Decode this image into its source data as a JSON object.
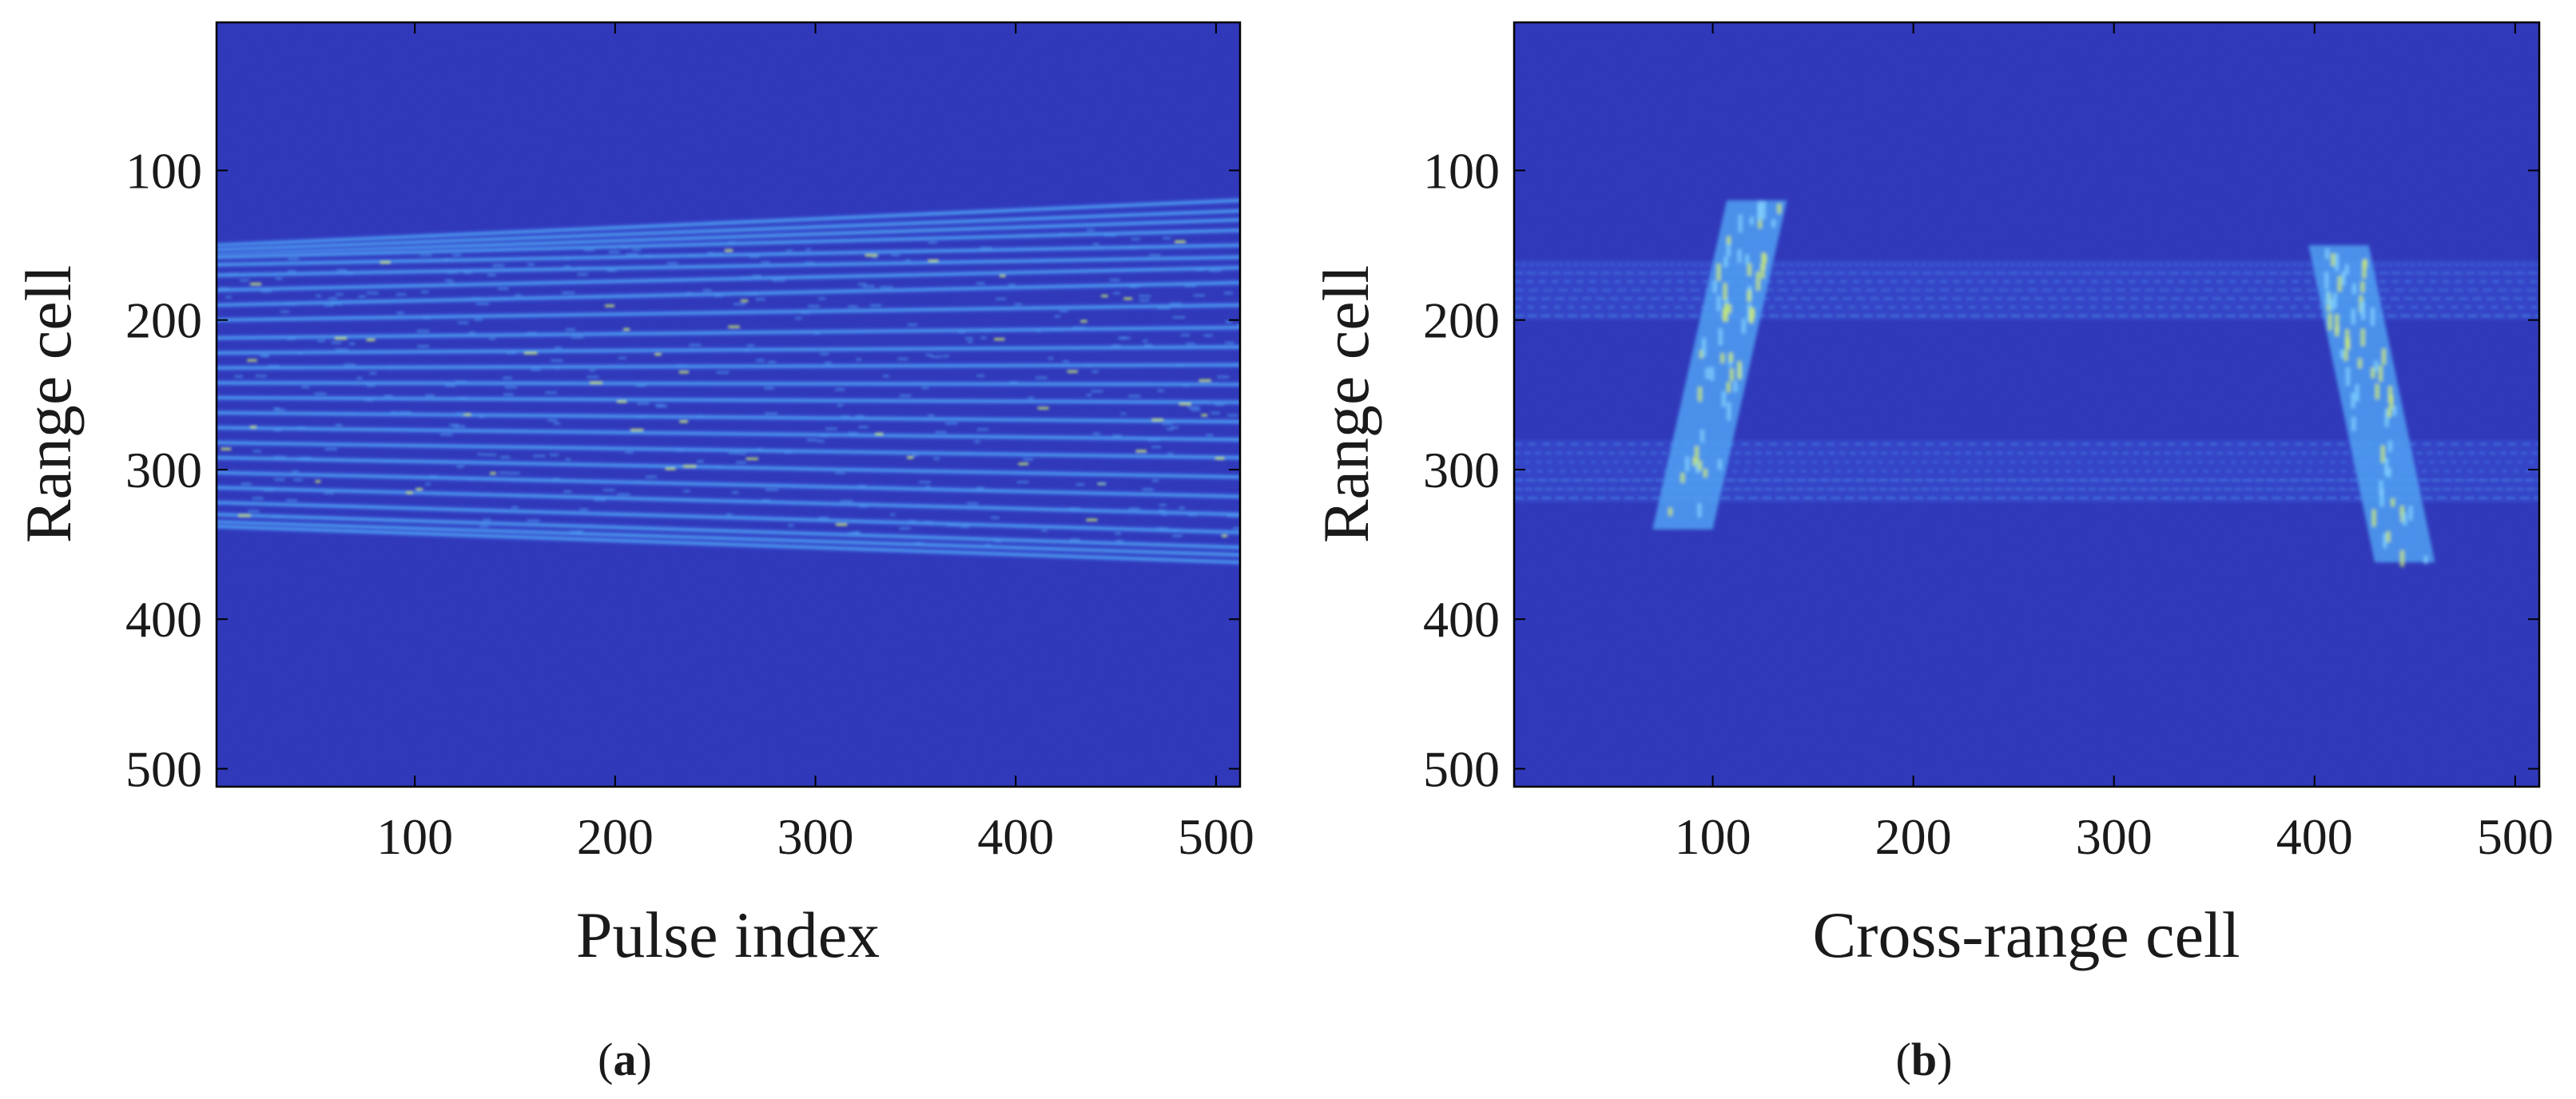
{
  "figure": {
    "colors": {
      "background": "#2b33b6",
      "stripe_dim": "#3a55d6",
      "stripe_bright": "#4fa0f2",
      "hot": "#c8e86a",
      "frame": "#000000"
    }
  },
  "chart_data": [
    {
      "type": "heatmap",
      "panel_label": "a",
      "xlabel": "Pulse index",
      "ylabel": "Range cell",
      "xlim": [
        1,
        512
      ],
      "ylim": [
        1,
        512
      ],
      "y_reversed": true,
      "xticks": [
        100,
        200,
        300,
        400,
        500
      ],
      "yticks": [
        100,
        200,
        300,
        400,
        500
      ],
      "xtick_labels": [
        "100",
        "200",
        "300",
        "400",
        "500"
      ],
      "ytick_labels": [
        "100",
        "200",
        "300",
        "400",
        "500"
      ],
      "grid": false,
      "colormap": "parula",
      "range_trajectories": [
        {
          "x": [
            1,
            512
          ],
          "y": [
            150,
            120
          ]
        },
        {
          "x": [
            1,
            512
          ],
          "y": [
            153,
            127
          ]
        },
        {
          "x": [
            1,
            512
          ],
          "y": [
            156,
            133
          ]
        },
        {
          "x": [
            1,
            512
          ],
          "y": [
            158,
            140
          ]
        },
        {
          "x": [
            1,
            512
          ],
          "y": [
            163,
            150
          ]
        },
        {
          "x": [
            1,
            512
          ],
          "y": [
            170,
            158
          ]
        },
        {
          "x": [
            1,
            512
          ],
          "y": [
            180,
            165
          ]
        },
        {
          "x": [
            1,
            512
          ],
          "y": [
            190,
            175
          ]
        },
        {
          "x": [
            1,
            512
          ],
          "y": [
            200,
            190
          ]
        },
        {
          "x": [
            1,
            512
          ],
          "y": [
            212,
            205
          ]
        },
        {
          "x": [
            1,
            512
          ],
          "y": [
            222,
            218
          ]
        },
        {
          "x": [
            1,
            512
          ],
          "y": [
            232,
            230
          ]
        },
        {
          "x": [
            1,
            512
          ],
          "y": [
            242,
            243
          ]
        },
        {
          "x": [
            1,
            512
          ],
          "y": [
            252,
            255
          ]
        },
        {
          "x": [
            1,
            512
          ],
          "y": [
            262,
            268
          ]
        },
        {
          "x": [
            1,
            512
          ],
          "y": [
            272,
            280
          ]
        },
        {
          "x": [
            1,
            512
          ],
          "y": [
            282,
            292
          ]
        },
        {
          "x": [
            1,
            512
          ],
          "y": [
            292,
            305
          ]
        },
        {
          "x": [
            1,
            512
          ],
          "y": [
            302,
            318
          ]
        },
        {
          "x": [
            1,
            512
          ],
          "y": [
            312,
            330
          ]
        },
        {
          "x": [
            1,
            512
          ],
          "y": [
            322,
            342
          ]
        },
        {
          "x": [
            1,
            512
          ],
          "y": [
            330,
            352
          ]
        },
        {
          "x": [
            1,
            512
          ],
          "y": [
            335,
            357
          ]
        },
        {
          "x": [
            1,
            512
          ],
          "y": [
            338,
            362
          ]
        }
      ]
    },
    {
      "type": "heatmap",
      "panel_label": "b",
      "xlabel": "Cross-range cell",
      "ylabel": "Range cell",
      "xlim": [
        1,
        512
      ],
      "ylim": [
        1,
        512
      ],
      "y_reversed": true,
      "xticks": [
        100,
        200,
        300,
        400,
        500
      ],
      "yticks": [
        100,
        200,
        300,
        400,
        500
      ],
      "xtick_labels": [
        "100",
        "200",
        "300",
        "400",
        "500"
      ],
      "ytick_labels": [
        "100",
        "200",
        "300",
        "400",
        "500"
      ],
      "grid": false,
      "colormap": "parula",
      "horizontal_bands": [
        {
          "y_range": [
            160,
            200
          ]
        },
        {
          "y_range": [
            280,
            322
          ]
        }
      ],
      "targets": [
        {
          "x_top": 122,
          "y_top": 120,
          "x_bottom": 85,
          "y_bottom": 340,
          "width": 30
        },
        {
          "x_top": 412,
          "y_top": 150,
          "x_bottom": 445,
          "y_bottom": 362,
          "width": 30
        }
      ]
    }
  ]
}
